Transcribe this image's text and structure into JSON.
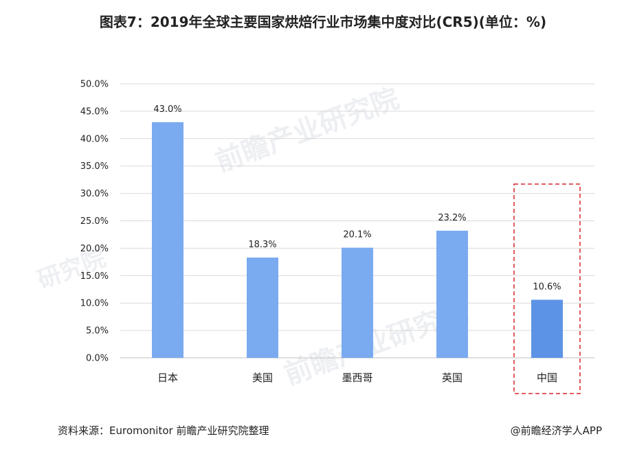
{
  "chart_data": {
    "type": "bar",
    "title": "图表7：2019年全球主要国家烘焙行业市场集中度对比(CR5)(单位：%)",
    "categories": [
      "日本",
      "美国",
      "墨西哥",
      "英国",
      "中国"
    ],
    "values": [
      43.0,
      18.3,
      20.1,
      23.2,
      10.6
    ],
    "data_labels": [
      "43.0%",
      "18.3%",
      "20.1%",
      "23.2%",
      "10.6%"
    ],
    "ylim": [
      0,
      50
    ],
    "ytick_step": 5,
    "ytick_labels": [
      "0.0%",
      "5.0%",
      "10.0%",
      "15.0%",
      "20.0%",
      "25.0%",
      "30.0%",
      "35.0%",
      "40.0%",
      "45.0%",
      "50.0%"
    ],
    "grid": true,
    "highlight_category": "中国",
    "colors": {
      "bar": "#7aaaf0",
      "bar_highlight": "#5c93e6",
      "grid": "#d9d9d9",
      "highlight_box": "#d9252b"
    }
  },
  "footer": {
    "source": "资料来源：Euromonitor 前瞻产业研究院整理",
    "credit": "@前瞻经济学人APP"
  }
}
